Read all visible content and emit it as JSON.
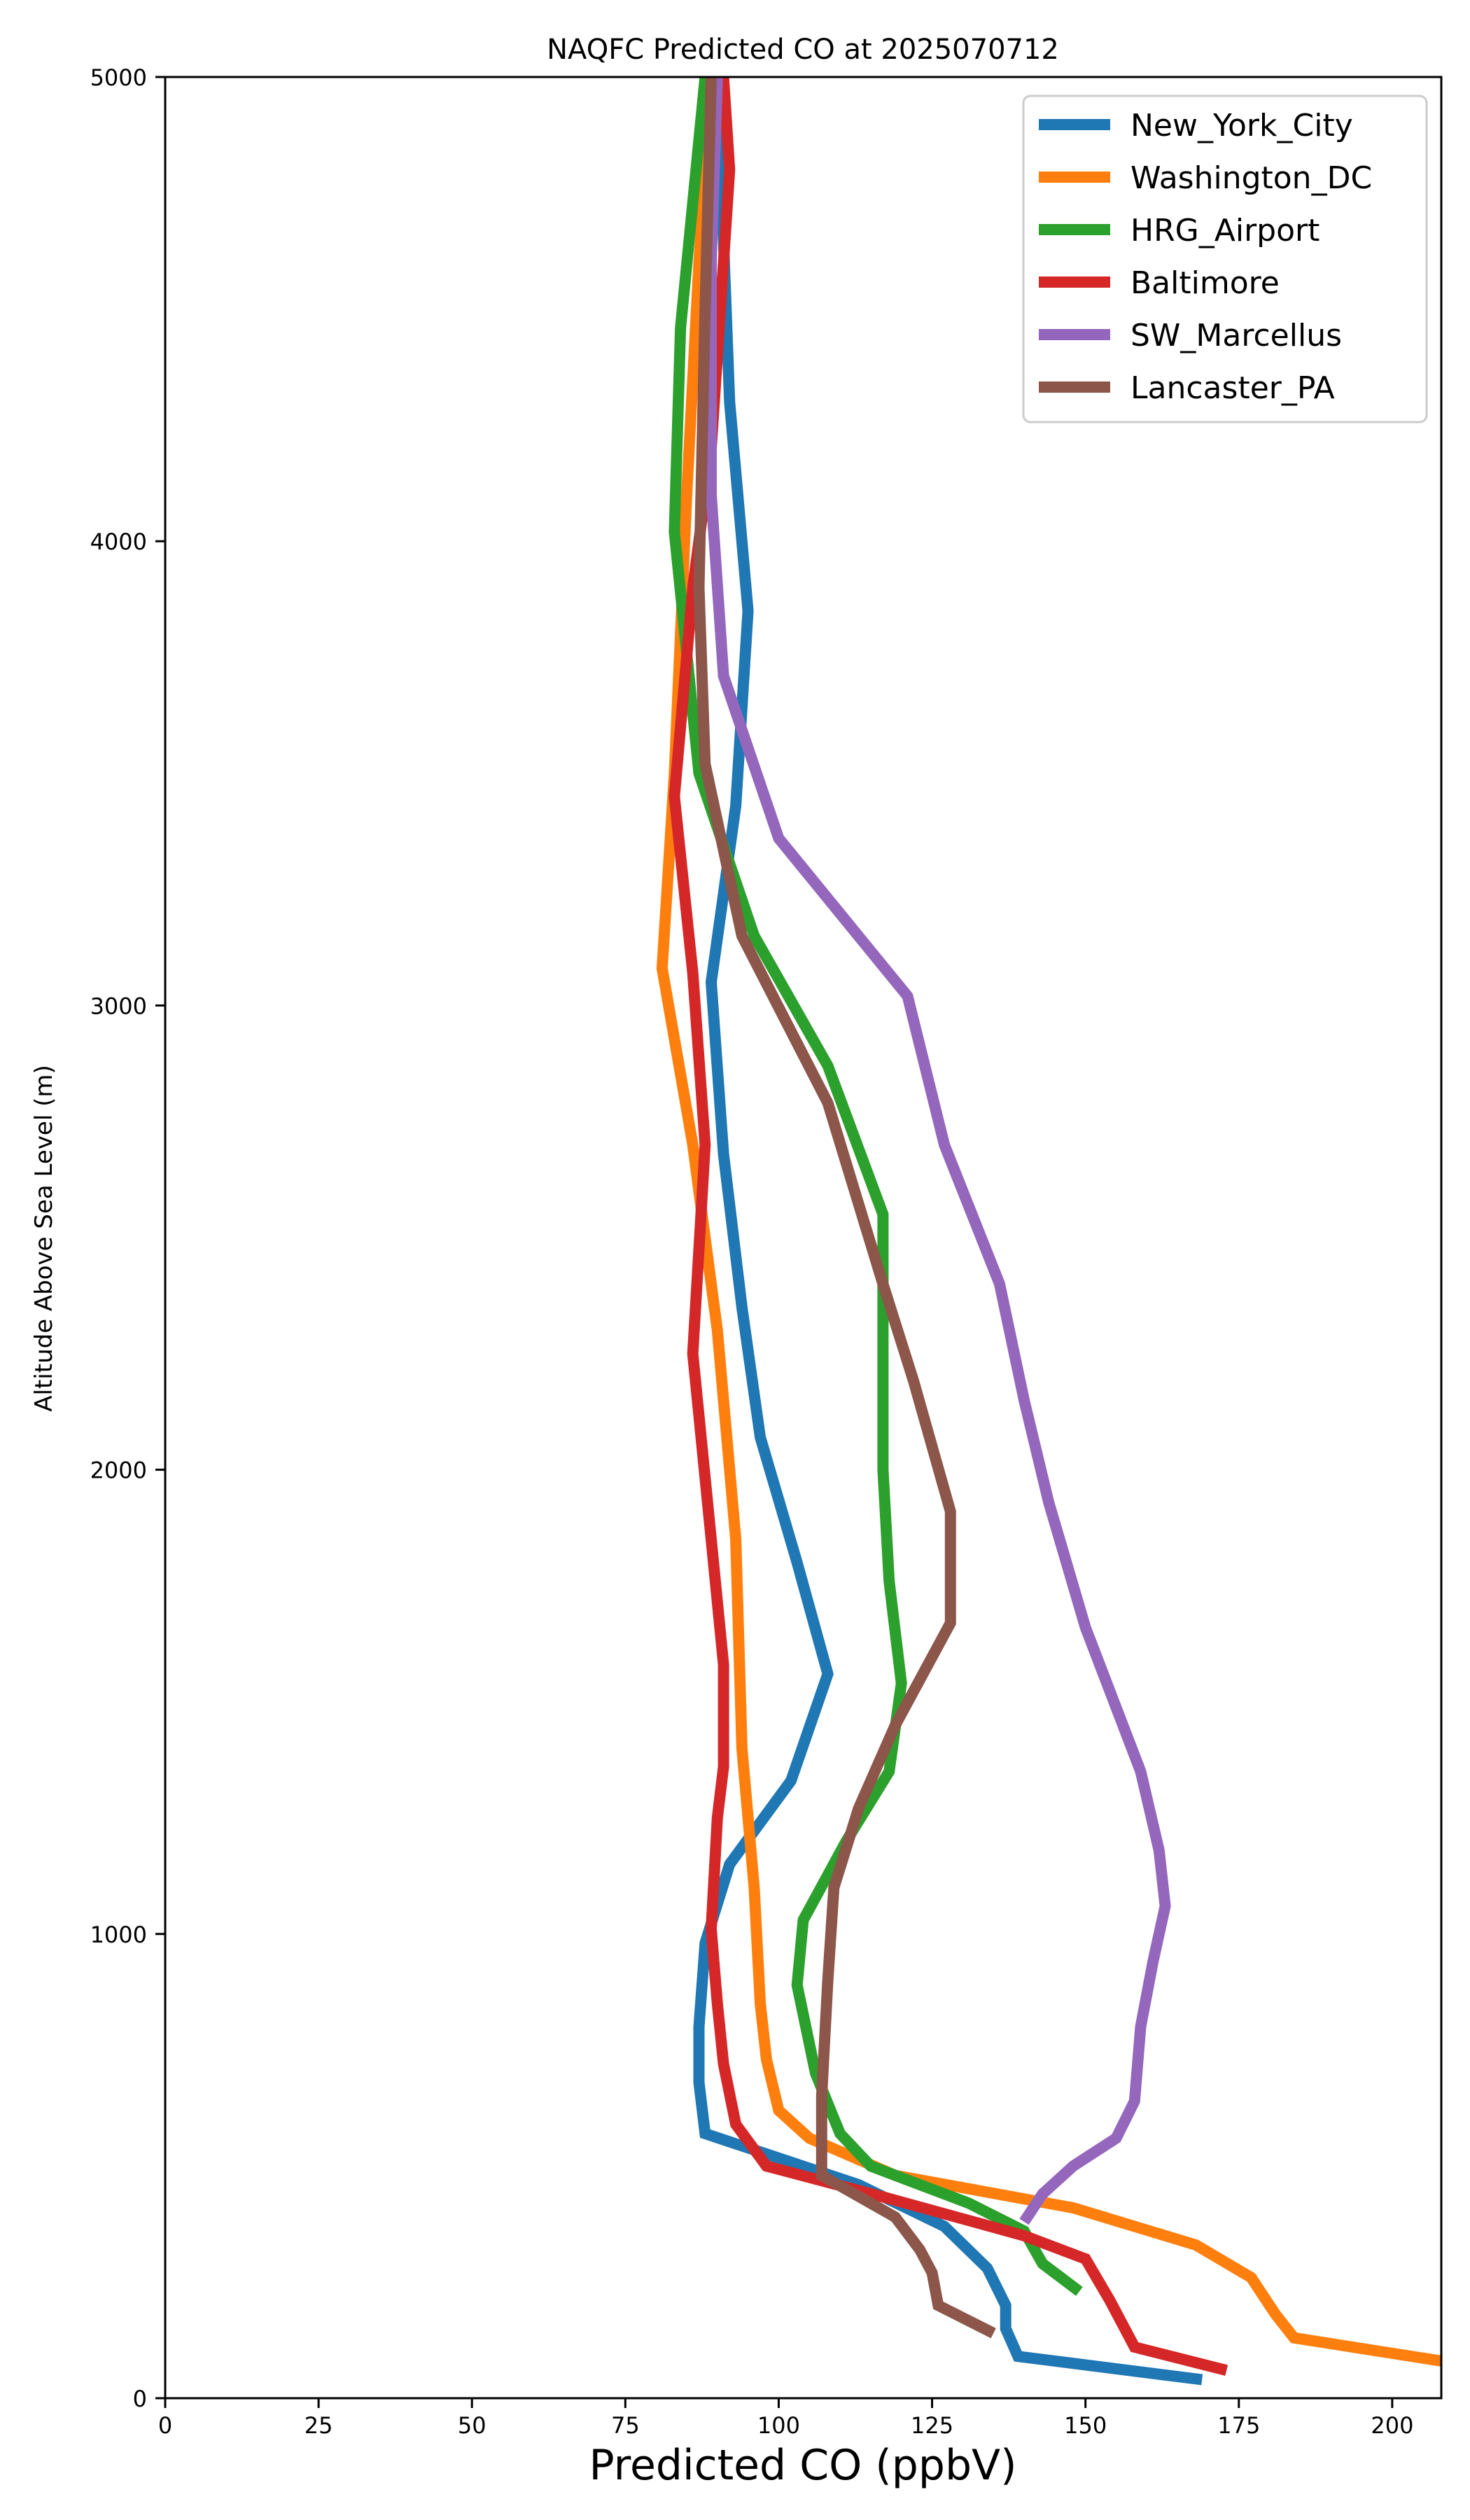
{
  "chart_data": {
    "type": "line",
    "title": "NAQFC Predicted CO at 2025070712",
    "xlabel": "Predicted CO (ppbV)",
    "ylabel": "Altitude Above Sea Level (m)",
    "xlim": [
      0,
      208
    ],
    "ylim": [
      0,
      5000
    ],
    "xticks": [
      "0",
      "25",
      "50",
      "75",
      "100",
      "125",
      "150",
      "175",
      "200"
    ],
    "yticks": [
      "0",
      "1000",
      "2000",
      "3000",
      "4000",
      "5000"
    ],
    "grid": false,
    "legend_position": "top-right",
    "series": [
      {
        "name": "New_York_City",
        "color": "#1f77b4",
        "points": [
          [
            169,
            40
          ],
          [
            139,
            90
          ],
          [
            137,
            150
          ],
          [
            137,
            200
          ],
          [
            134,
            280
          ],
          [
            127,
            370
          ],
          [
            113,
            460
          ],
          [
            88,
            570
          ],
          [
            87,
            680
          ],
          [
            87,
            800
          ],
          [
            88,
            980
          ],
          [
            92,
            1150
          ],
          [
            102,
            1330
          ],
          [
            108,
            1560
          ],
          [
            103,
            1800
          ],
          [
            97,
            2070
          ],
          [
            94,
            2350
          ],
          [
            91,
            2680
          ],
          [
            89,
            3050
          ],
          [
            93,
            3430
          ],
          [
            95,
            3850
          ],
          [
            92,
            4300
          ],
          [
            90,
            5000
          ]
        ]
      },
      {
        "name": "Washington_DC",
        "color": "#ff7f0e",
        "points": [
          [
            208,
            80
          ],
          [
            184,
            130
          ],
          [
            181,
            180
          ],
          [
            177,
            260
          ],
          [
            168,
            330
          ],
          [
            148,
            410
          ],
          [
            119,
            480
          ],
          [
            105,
            560
          ],
          [
            100,
            620
          ],
          [
            98,
            730
          ],
          [
            97,
            850
          ],
          [
            96,
            1100
          ],
          [
            94,
            1400
          ],
          [
            93,
            1850
          ],
          [
            90,
            2300
          ],
          [
            86,
            2700
          ],
          [
            81,
            3080
          ],
          [
            83,
            3500
          ],
          [
            85,
            4100
          ],
          [
            87,
            4600
          ],
          [
            89,
            5000
          ]
        ]
      },
      {
        "name": "HRG_Airport",
        "color": "#2ca02c",
        "points": [
          [
            149,
            230
          ],
          [
            143,
            290
          ],
          [
            140,
            360
          ],
          [
            131,
            420
          ],
          [
            115,
            500
          ],
          [
            110,
            570
          ],
          [
            106,
            700
          ],
          [
            103,
            890
          ],
          [
            104,
            1030
          ],
          [
            111,
            1200
          ],
          [
            118,
            1350
          ],
          [
            120,
            1540
          ],
          [
            118,
            1760
          ],
          [
            117,
            2000
          ],
          [
            117,
            2270
          ],
          [
            117,
            2550
          ],
          [
            108,
            2870
          ],
          [
            96,
            3150
          ],
          [
            87,
            3500
          ],
          [
            83,
            4020
          ],
          [
            84,
            4460
          ],
          [
            88,
            5000
          ]
        ]
      },
      {
        "name": "Baltimore",
        "color": "#d62728",
        "points": [
          [
            173,
            60
          ],
          [
            158,
            110
          ],
          [
            154,
            210
          ],
          [
            150,
            300
          ],
          [
            140,
            350
          ],
          [
            118,
            430
          ],
          [
            98,
            500
          ],
          [
            93,
            590
          ],
          [
            91,
            720
          ],
          [
            90,
            850
          ],
          [
            89,
            1010
          ],
          [
            90,
            1250
          ],
          [
            91,
            1360
          ],
          [
            91,
            1580
          ],
          [
            89,
            1850
          ],
          [
            86,
            2250
          ],
          [
            88,
            2700
          ],
          [
            86,
            3070
          ],
          [
            83,
            3450
          ],
          [
            86,
            3900
          ],
          [
            89,
            4200
          ],
          [
            92,
            4800
          ],
          [
            91,
            5000
          ]
        ]
      },
      {
        "name": "SW_Marcellus",
        "color": "#9467bd",
        "points": [
          [
            140,
            380
          ],
          [
            143,
            440
          ],
          [
            148,
            500
          ],
          [
            155,
            560
          ],
          [
            158,
            640
          ],
          [
            159,
            800
          ],
          [
            161,
            940
          ],
          [
            163,
            1060
          ],
          [
            162,
            1180
          ],
          [
            159,
            1350
          ],
          [
            150,
            1660
          ],
          [
            144,
            1930
          ],
          [
            140,
            2150
          ],
          [
            136,
            2400
          ],
          [
            127,
            2700
          ],
          [
            121,
            3020
          ],
          [
            100,
            3360
          ],
          [
            91,
            3710
          ],
          [
            89,
            4100
          ],
          [
            89,
            4600
          ],
          [
            90,
            5000
          ]
        ]
      },
      {
        "name": "Lancaster_PA",
        "color": "#8c564b",
        "points": [
          [
            135,
            140
          ],
          [
            126,
            200
          ],
          [
            125,
            270
          ],
          [
            123,
            320
          ],
          [
            119,
            390
          ],
          [
            107,
            480
          ],
          [
            107,
            650
          ],
          [
            108,
            900
          ],
          [
            109,
            1100
          ],
          [
            113,
            1270
          ],
          [
            119,
            1450
          ],
          [
            128,
            1670
          ],
          [
            128,
            1910
          ],
          [
            122,
            2190
          ],
          [
            117,
            2400
          ],
          [
            108,
            2790
          ],
          [
            94,
            3150
          ],
          [
            88,
            3520
          ],
          [
            87,
            3900
          ],
          [
            88,
            4500
          ],
          [
            89,
            5000
          ]
        ]
      }
    ]
  }
}
